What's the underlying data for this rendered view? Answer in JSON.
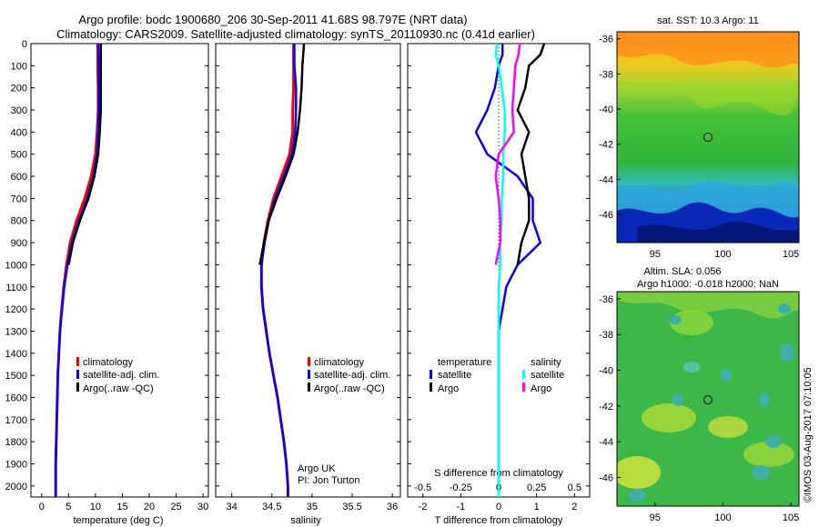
{
  "header": {
    "line1": "Argo profile: bodc 1900680_206 30-Sep-2011 41.68S 98.797E (NRT data)",
    "line2": "Climatology: CARS2009. Satellite-adjusted climatology: synTS_20110930.nc (0.41d earlier)"
  },
  "credit": "©IMOS 03-Aug-2017 07:10:05",
  "colors": {
    "climatology": "#ff0000",
    "satellite": "#0000ff",
    "argo": "#000000",
    "sal_satellite": "#00ffff",
    "sal_argo": "#ff00ff"
  },
  "panels": {
    "temperature": {
      "xlabel": "temperature (deg C)",
      "xticks": [
        "0",
        "5",
        "10",
        "15",
        "20",
        "25",
        "30"
      ],
      "legend": [
        "climatology",
        "satellite-adj. clim.",
        "Argo(..raw -QC)"
      ]
    },
    "salinity": {
      "xlabel": "salinity",
      "xticks": [
        "34",
        "34.5",
        "35",
        "35.5",
        "36"
      ],
      "legend": [
        "climatology",
        "satellite-adj. clim.",
        "Argo(..raw -QC)"
      ],
      "note1": "Argo UK",
      "note2": "PI: Jon Turton"
    },
    "difference": {
      "xlabel": "T difference from climatology",
      "top_label": "S difference from climatology",
      "xticks_T": [
        "-2",
        "-1",
        "0",
        "1",
        "2"
      ],
      "xticks_S": [
        "-0.5",
        "-0.25",
        "0",
        "0.25",
        "0.5"
      ],
      "legend_temp_title": "temperature",
      "legend_sal_title": "salinity",
      "legend_temp": [
        "satellite",
        "Argo"
      ],
      "legend_sal": [
        "satellite",
        "Argo"
      ]
    },
    "depth_ticks": [
      "0",
      "100",
      "200",
      "300",
      "400",
      "500",
      "600",
      "700",
      "800",
      "900",
      "1000",
      "1100",
      "1200",
      "1300",
      "1400",
      "1500",
      "1600",
      "1700",
      "1800",
      "1900",
      "2000"
    ]
  },
  "maps": {
    "sst": {
      "title": "sat. SST: 10.3 Argo: 11",
      "yticks": [
        "-36",
        "-38",
        "-40",
        "-42",
        "-44",
        "-46"
      ],
      "xticks": [
        "95",
        "100",
        "105"
      ],
      "marker": {
        "lon": 98.797,
        "lat": -41.68
      }
    },
    "sla": {
      "title1": "Altim. SLA: 0.056",
      "title2": "Argo h1000: -0.018 h2000: NaN",
      "yticks": [
        "-36",
        "-38",
        "-40",
        "-42",
        "-44",
        "-46"
      ],
      "xticks": [
        "95",
        "100",
        "105"
      ],
      "marker": {
        "lon": 98.797,
        "lat": -41.68
      }
    }
  },
  "chart_data": [
    {
      "type": "line",
      "title": "",
      "xlabel": "temperature (deg C)",
      "ylabel": "",
      "xlim": [
        -2,
        31
      ],
      "ylim": [
        2050,
        0
      ],
      "series": [
        {
          "name": "climatology",
          "depth": [
            0,
            100,
            200,
            300,
            400,
            500,
            600,
            700,
            800,
            900,
            1000,
            1100,
            1200,
            1300,
            1400,
            1500,
            1600,
            1700,
            1800,
            1900,
            2000,
            2050
          ],
          "values": [
            10.4,
            10.4,
            10.5,
            10.5,
            10.3,
            10.0,
            9.2,
            8.0,
            6.5,
            5.3,
            4.6,
            4.1,
            3.7,
            3.4,
            3.2,
            3.0,
            2.9,
            2.8,
            2.7,
            2.6,
            2.6,
            2.6
          ]
        },
        {
          "name": "satellite-adj. clim.",
          "depth": [
            0,
            100,
            200,
            300,
            400,
            500,
            600,
            700,
            800,
            900,
            1000,
            1100,
            1200,
            1300,
            1400,
            1500,
            1600,
            1700,
            1800,
            1900,
            2000,
            2050
          ],
          "values": [
            10.5,
            10.6,
            10.6,
            10.6,
            10.5,
            10.3,
            9.6,
            8.5,
            6.9,
            5.6,
            4.8,
            4.2,
            3.8,
            3.4,
            3.2,
            3.0,
            2.9,
            2.8,
            2.7,
            2.6,
            2.6,
            2.6
          ]
        },
        {
          "name": "Argo(..raw -QC)",
          "depth": [
            0,
            50,
            100,
            200,
            300,
            400,
            500,
            600,
            700,
            800,
            900,
            1000
          ],
          "values": [
            11.0,
            11.0,
            11.0,
            11.0,
            11.0,
            10.8,
            10.5,
            9.8,
            8.7,
            7.1,
            5.8,
            5.0
          ]
        }
      ]
    },
    {
      "type": "line",
      "title": "",
      "xlabel": "salinity",
      "ylabel": "",
      "xlim": [
        33.8,
        36.1
      ],
      "ylim": [
        2050,
        0
      ],
      "series": [
        {
          "name": "climatology",
          "depth": [
            0,
            100,
            200,
            300,
            400,
            500,
            600,
            700,
            800,
            900,
            1000,
            1100,
            1200,
            1300,
            1400,
            1500,
            1600,
            1700,
            1800,
            1900,
            2000,
            2050
          ],
          "values": [
            34.77,
            34.77,
            34.77,
            34.76,
            34.76,
            34.72,
            34.62,
            34.52,
            34.45,
            34.4,
            34.37,
            34.37,
            34.39,
            34.43,
            34.47,
            34.52,
            34.57,
            34.61,
            34.65,
            34.68,
            34.7,
            34.7
          ]
        },
        {
          "name": "satellite-adj. clim.",
          "depth": [
            0,
            100,
            200,
            300,
            400,
            500,
            600,
            700,
            800,
            900,
            1000,
            1100,
            1200,
            1300,
            1400,
            1500,
            1600,
            1700,
            1800,
            1900,
            2000,
            2050
          ],
          "values": [
            34.78,
            34.78,
            34.8,
            34.8,
            34.79,
            34.75,
            34.65,
            34.54,
            34.46,
            34.41,
            34.37,
            34.37,
            34.39,
            34.43,
            34.47,
            34.52,
            34.57,
            34.61,
            34.65,
            34.68,
            34.7,
            34.7
          ]
        },
        {
          "name": "Argo(..raw -QC)",
          "depth": [
            0,
            50,
            100,
            200,
            300,
            400,
            500,
            600,
            700,
            800,
            900,
            1000
          ],
          "values": [
            34.9,
            34.89,
            34.88,
            34.87,
            34.85,
            34.82,
            34.77,
            34.67,
            34.56,
            34.46,
            34.4,
            34.35
          ]
        }
      ]
    },
    {
      "type": "line",
      "title": "",
      "xlabel": "T difference from climatology",
      "ylabel": "",
      "xlim": [
        -2.4,
        2.4
      ],
      "ylim": [
        2050,
        0
      ],
      "series": [
        {
          "name": "temperature satellite",
          "depth": [
            0,
            50,
            100,
            200,
            300,
            400,
            500,
            600,
            700,
            800,
            900,
            1000,
            1100,
            1200,
            1300,
            1400,
            1500,
            1600,
            1700,
            1800,
            1900,
            2000
          ],
          "values": [
            0.1,
            0.1,
            0.0,
            -0.1,
            -0.3,
            -0.6,
            -0.3,
            0.5,
            0.9,
            0.9,
            1.1,
            0.5,
            0.2,
            0.1,
            0.0,
            0.0,
            0.0,
            0.0,
            0.0,
            0.0,
            0.0,
            0.0
          ]
        },
        {
          "name": "temperature Argo",
          "depth": [
            0,
            50,
            100,
            200,
            300,
            400,
            500,
            600,
            700,
            800,
            900,
            1000
          ],
          "values": [
            1.2,
            1.1,
            0.8,
            0.7,
            0.5,
            0.8,
            0.6,
            0.7,
            0.8,
            0.8,
            0.6,
            0.5
          ]
        },
        {
          "name": "salinity satellite",
          "depth": [
            0,
            50,
            100,
            150,
            200,
            300,
            400,
            500,
            600,
            700,
            800,
            900,
            1000,
            1100,
            1200,
            1300,
            1400,
            1500,
            1600,
            1700,
            1800,
            1900,
            2000,
            2050
          ],
          "values": [
            -0.01,
            -0.02,
            0.0,
            0.01,
            0.02,
            0.04,
            0.04,
            0.03,
            0.03,
            0.02,
            0.02,
            0.01,
            0.01,
            0.0,
            0.0,
            0.0,
            0.0,
            0.0,
            0.0,
            0.0,
            0.0,
            0.0,
            0.0,
            0.0
          ]
        },
        {
          "name": "salinity Argo",
          "depth": [
            0,
            50,
            100,
            200,
            300,
            400,
            500,
            600,
            700,
            800,
            900,
            1000
          ],
          "values": [
            0.14,
            0.13,
            0.11,
            0.1,
            0.09,
            0.1,
            0.0,
            -0.02,
            0.0,
            0.01,
            0.01,
            -0.02
          ]
        }
      ]
    }
  ]
}
